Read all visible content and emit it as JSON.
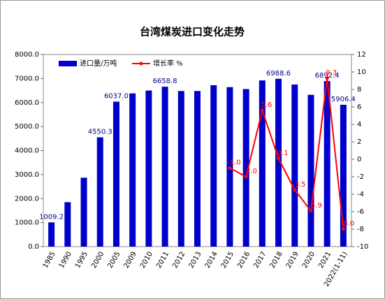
{
  "chart_data": {
    "type": "bar-line",
    "title": "台湾煤炭进口变化走势",
    "categories": [
      "1985",
      "1990",
      "1995",
      "2000",
      "2005",
      "2009",
      "2010",
      "2011",
      "2012",
      "2013",
      "2014",
      "2015",
      "2016",
      "2017",
      "2018",
      "2019",
      "2020",
      "2021",
      "2022(1-11)"
    ],
    "series": [
      {
        "name": "进口量/万吨",
        "type": "bar",
        "color": "#0000cc",
        "values": [
          1009.2,
          1850,
          2870,
          4550.3,
          6037.0,
          6380,
          6500,
          6658.8,
          6480,
          6480,
          6720,
          6640,
          6560,
          6920,
          6988.6,
          6750,
          6320,
          6892.4,
          5906.4
        ],
        "value_labels": [
          "1009.2",
          null,
          null,
          "4550.3",
          "6037.0",
          null,
          null,
          "6658.8",
          null,
          null,
          null,
          null,
          null,
          null,
          "6988.6",
          null,
          null,
          "6892.4",
          "5906.4"
        ]
      },
      {
        "name": "增长率 %",
        "type": "line",
        "axis": "y2",
        "color": "#ff0000",
        "values": [
          null,
          null,
          null,
          null,
          null,
          null,
          null,
          null,
          null,
          null,
          null,
          -1.0,
          -2.0,
          5.6,
          0.1,
          -3.5,
          -5.9,
          9.3,
          -8.0
        ],
        "value_labels": [
          null,
          null,
          null,
          null,
          null,
          null,
          null,
          null,
          null,
          null,
          null,
          "-1.0",
          "-2.0",
          "5.6",
          "0.1",
          "-3.5",
          "-5.9",
          "9.3",
          "-8.0"
        ]
      }
    ],
    "ylim": [
      0,
      8000
    ],
    "yticks": [
      {
        "value": 0,
        "label": "0.0"
      },
      {
        "value": 1000,
        "label": "1000.0"
      },
      {
        "value": 2000,
        "label": "2000.0"
      },
      {
        "value": 3000,
        "label": "3000.0"
      },
      {
        "value": 4000,
        "label": "4000.0"
      },
      {
        "value": 5000,
        "label": "5000.0"
      },
      {
        "value": 6000,
        "label": "6000.0"
      },
      {
        "value": 7000,
        "label": "7000.0"
      },
      {
        "value": 8000,
        "label": "8000.0"
      }
    ],
    "y2lim": [
      -10,
      12
    ],
    "y2ticks": [
      -10,
      -8,
      -6,
      -4,
      -2,
      0,
      2,
      4,
      6,
      8,
      10,
      12
    ],
    "legend": "top-left"
  }
}
